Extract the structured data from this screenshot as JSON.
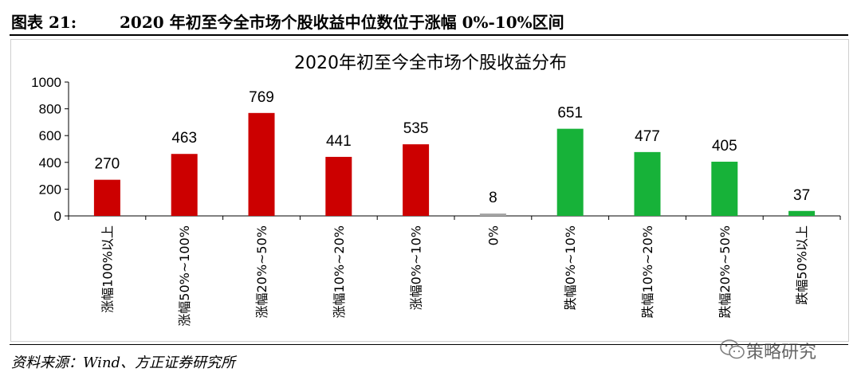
{
  "header": {
    "figure_label": "图表 21:",
    "caption": "2020 年初至今全市场个股收益中位数位于涨幅 0%-10%区间"
  },
  "footer": {
    "source": "资料来源：Wind、方正证券研究所",
    "watermark_text": "策略研究",
    "watermark_icon": "wechat-icon"
  },
  "colors": {
    "up": "#cc0000",
    "flat": "#a6a6a6",
    "down": "#17b239"
  },
  "chart_data": {
    "type": "bar",
    "title": "2020年初至今全市场个股收益分布",
    "xlabel": "",
    "ylabel": "",
    "ylim": [
      0,
      1000
    ],
    "yticks": [
      0,
      200,
      400,
      600,
      800,
      1000
    ],
    "grid": false,
    "legend": "none",
    "categories": [
      "涨幅100%以上",
      "涨幅50%~100%",
      "涨幅20%~50%",
      "涨幅10%~20%",
      "涨幅0%~10%",
      "0%",
      "跌幅0%~10%",
      "跌幅10%~20%",
      "跌幅20%~50%",
      "跌幅50%以上"
    ],
    "values": [
      270,
      463,
      769,
      441,
      535,
      8,
      651,
      477,
      405,
      37
    ],
    "bar_colors": [
      "up",
      "up",
      "up",
      "up",
      "up",
      "flat",
      "down",
      "down",
      "down",
      "down"
    ]
  }
}
